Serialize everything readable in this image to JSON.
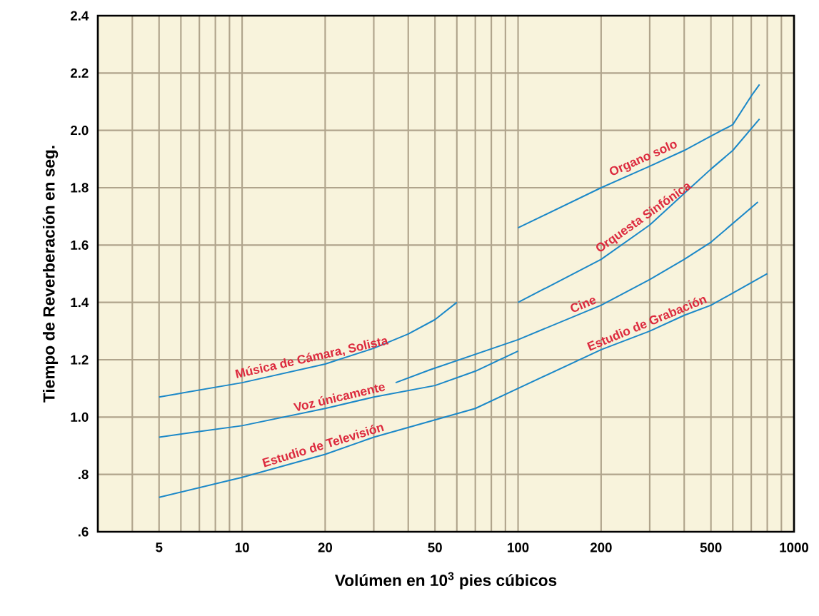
{
  "chart_data": {
    "type": "line",
    "xlabel": "Volúmen en 10$^{3}$ pies cúbicos",
    "ylabel": "Tiempo de Reverberación en seg.",
    "log": "x",
    "grid": true,
    "xlim": [
      3,
      1000
    ],
    "ylim": [
      0.6,
      2.4
    ],
    "xticks": [
      {
        "value": 4,
        "label": null
      },
      5,
      {
        "value": 6,
        "label": null
      },
      {
        "value": 7,
        "label": null
      },
      {
        "value": 8,
        "label": null
      },
      {
        "value": 9,
        "label": null
      },
      10,
      20,
      {
        "value": 30,
        "label": null
      },
      {
        "value": 40,
        "label": null
      },
      50,
      {
        "value": 60,
        "label": null
      },
      {
        "value": 70,
        "label": null
      },
      {
        "value": 80,
        "label": null
      },
      {
        "value": 90,
        "label": null
      },
      100,
      200,
      {
        "value": 300,
        "label": null
      },
      {
        "value": 400,
        "label": null
      },
      500,
      {
        "value": 600,
        "label": null
      },
      {
        "value": 700,
        "label": null
      },
      {
        "value": 800,
        "label": null
      },
      {
        "value": 900,
        "label": null
      },
      1000
    ],
    "yticks": [
      {
        "value": 0.6,
        "label": ".6"
      },
      {
        "value": 0.8,
        "label": ".8"
      },
      {
        "value": 1.0,
        "label": "1.0"
      },
      {
        "value": 1.2,
        "label": "1.2"
      },
      {
        "value": 1.4,
        "label": "1.4"
      },
      {
        "value": 1.6,
        "label": "1.6"
      },
      {
        "value": 1.8,
        "label": "1.8"
      },
      {
        "value": 2.0,
        "label": "2.0"
      },
      {
        "value": 2.2,
        "label": "2.2"
      },
      {
        "value": 2.4,
        "label": "2.4"
      }
    ],
    "series": [
      {
        "name": "Organo solo",
        "color": "#1b88c8",
        "x": [
          100,
          200,
          300,
          400,
          500,
          600,
          700,
          750
        ],
        "values": [
          1.66,
          1.8,
          1.875,
          1.93,
          1.98,
          2.02,
          2.12,
          2.16
        ]
      },
      {
        "name": "Orquesta Sinfónica",
        "color": "#1b88c8",
        "x": [
          100,
          200,
          300,
          400,
          500,
          600,
          750
        ],
        "values": [
          1.4,
          1.55,
          1.67,
          1.78,
          1.865,
          1.93,
          2.04
        ]
      },
      {
        "name": "Cine",
        "color": "#1b88c8",
        "x": [
          36,
          48,
          100,
          200,
          300,
          400,
          500,
          740
        ],
        "values": [
          1.12,
          1.165,
          1.27,
          1.39,
          1.48,
          1.55,
          1.61,
          1.75
        ]
      },
      {
        "name": "Música de Cámara, Solista",
        "color": "#1b88c8",
        "x": [
          5,
          10,
          20,
          30,
          40,
          50,
          60
        ],
        "values": [
          1.07,
          1.12,
          1.185,
          1.24,
          1.29,
          1.34,
          1.4
        ]
      },
      {
        "name": "Voz únicamente",
        "color": "#1b88c8",
        "x": [
          5,
          7,
          10,
          20,
          30,
          50,
          70,
          100
        ],
        "values": [
          0.93,
          0.95,
          0.97,
          1.03,
          1.07,
          1.11,
          1.16,
          1.23
        ]
      },
      {
        "color": "#1b88c8",
        "x": [
          5,
          10,
          20,
          30,
          50,
          70,
          100,
          200,
          300,
          400,
          500,
          800
        ],
        "values": [
          0.72,
          0.79,
          0.87,
          0.93,
          0.99,
          1.03,
          1.1,
          1.235,
          1.3,
          1.355,
          1.39,
          1.5
        ]
      }
    ],
    "annotations": [
      {
        "text": "Estudio de Televisión",
        "x": 20,
        "y": 0.87
      },
      {
        "text": "Estudio de Grabación",
        "x": 300,
        "y": 1.3
      }
    ]
  }
}
